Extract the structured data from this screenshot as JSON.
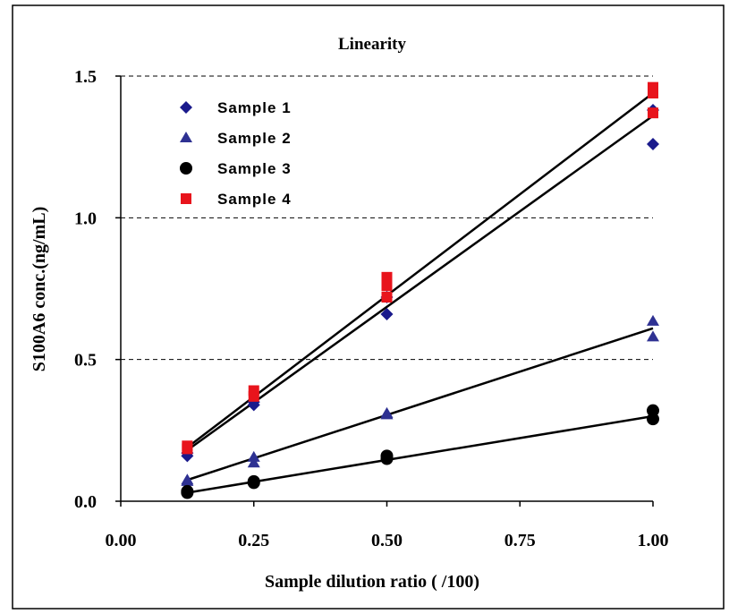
{
  "chart_data": {
    "type": "scatter",
    "title": "Linearity",
    "xlabel": "Sample dilution ratio ( /100)",
    "ylabel": "S100A6 conc.(ng/mL)",
    "xlim": [
      0,
      1
    ],
    "ylim": [
      0,
      1.5
    ],
    "x_ticks": [
      0.0,
      0.25,
      0.5,
      0.75,
      1.0
    ],
    "x_tick_labels": [
      "0.00",
      "0.25",
      "0.50",
      "0.75",
      "1.00"
    ],
    "y_ticks": [
      0.0,
      0.5,
      1.0,
      1.5
    ],
    "y_tick_labels": [
      "0.0",
      "0.5",
      "1.0",
      "1.5"
    ],
    "grid": "horizontal dashed",
    "legend_position": "top-left",
    "series": [
      {
        "name": "Sample 1",
        "marker": "diamond",
        "color": "#1a1a8c",
        "points": [
          [
            0.125,
            0.17
          ],
          [
            0.125,
            0.16
          ],
          [
            0.25,
            0.35
          ],
          [
            0.25,
            0.34
          ],
          [
            0.5,
            0.72
          ],
          [
            0.5,
            0.66
          ],
          [
            1.0,
            1.38
          ],
          [
            1.0,
            1.26
          ]
        ],
        "fit": [
          [
            0.125,
            0.18
          ],
          [
            1.0,
            1.36
          ]
        ]
      },
      {
        "name": "Sample 2",
        "marker": "triangle",
        "color": "#2e3192",
        "points": [
          [
            0.125,
            0.075
          ],
          [
            0.125,
            0.07
          ],
          [
            0.25,
            0.155
          ],
          [
            0.25,
            0.135
          ],
          [
            0.5,
            0.31
          ],
          [
            0.5,
            0.305
          ],
          [
            1.0,
            0.635
          ],
          [
            1.0,
            0.58
          ]
        ],
        "fit": [
          [
            0.125,
            0.075
          ],
          [
            1.0,
            0.61
          ]
        ]
      },
      {
        "name": "Sample 3",
        "marker": "circle",
        "color": "#000000",
        "points": [
          [
            0.125,
            0.035
          ],
          [
            0.125,
            0.03
          ],
          [
            0.25,
            0.07
          ],
          [
            0.25,
            0.065
          ],
          [
            0.5,
            0.16
          ],
          [
            0.5,
            0.15
          ],
          [
            1.0,
            0.32
          ],
          [
            1.0,
            0.29
          ]
        ],
        "fit": [
          [
            0.125,
            0.03
          ],
          [
            1.0,
            0.3
          ]
        ]
      },
      {
        "name": "Sample 4",
        "marker": "square",
        "color": "#e8141c",
        "points": [
          [
            0.125,
            0.195
          ],
          [
            0.125,
            0.185
          ],
          [
            0.25,
            0.39
          ],
          [
            0.25,
            0.37
          ],
          [
            0.5,
            0.79
          ],
          [
            0.5,
            0.76
          ],
          [
            0.5,
            0.72
          ],
          [
            1.0,
            1.46
          ],
          [
            1.0,
            1.44
          ],
          [
            1.0,
            1.37
          ]
        ],
        "fit": [
          [
            0.125,
            0.19
          ],
          [
            1.0,
            1.44
          ]
        ]
      }
    ]
  }
}
